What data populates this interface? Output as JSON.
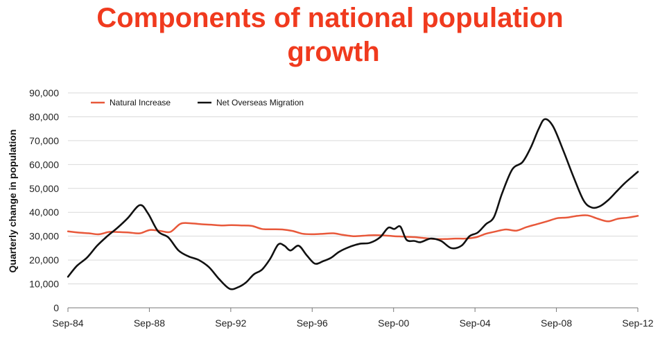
{
  "chart_data": {
    "type": "line",
    "title_line1": "Components of national population",
    "title_line2": "growth",
    "xlabel": "",
    "ylabel": "Quarterly change in population",
    "x_ticks": [
      "Sep-84",
      "Sep-88",
      "Sep-92",
      "Sep-96",
      "Sep-00",
      "Sep-04",
      "Sep-08",
      "Sep-12"
    ],
    "y_ticks": [
      "0",
      "10,000",
      "20,000",
      "30,000",
      "40,000",
      "50,000",
      "60,000",
      "70,000",
      "80,000",
      "90,000"
    ],
    "ylim": [
      0,
      90000
    ],
    "xlim": [
      1984.667,
      2012.667
    ],
    "legend": [
      "Natural Increase",
      "Net Overseas Migration"
    ],
    "legend_position": "top-left",
    "colors": {
      "natural_increase": "#e8583a",
      "net_overseas_migration": "#111111",
      "title": "#f03a1e",
      "grid": "#d9d9d9"
    },
    "series": [
      {
        "name": "Natural Increase",
        "x": [
          1984.67,
          1985.2,
          1985.7,
          1986.2,
          1986.7,
          1987.2,
          1987.7,
          1988.2,
          1988.7,
          1989.2,
          1989.7,
          1990.2,
          1990.7,
          1991.2,
          1991.7,
          1992.2,
          1992.7,
          1993.2,
          1993.7,
          1994.2,
          1994.7,
          1995.2,
          1995.7,
          1996.2,
          1996.7,
          1997.2,
          1997.7,
          1998.2,
          1998.7,
          1999.2,
          1999.7,
          2000.2,
          2000.7,
          2001.2,
          2001.7,
          2002.2,
          2002.7,
          2003.2,
          2003.7,
          2004.2,
          2004.7,
          2005.2,
          2005.7,
          2006.2,
          2006.7,
          2007.2,
          2007.7,
          2008.2,
          2008.7,
          2009.2,
          2009.7,
          2010.2,
          2010.7,
          2011.2,
          2011.7,
          2012.2,
          2012.67
        ],
        "values": [
          32000,
          31500,
          31200,
          30800,
          31800,
          31700,
          31500,
          31200,
          32600,
          32200,
          31800,
          35200,
          35400,
          35000,
          34800,
          34500,
          34600,
          34500,
          34300,
          33000,
          32900,
          32800,
          32200,
          31000,
          30800,
          31000,
          31200,
          30500,
          30000,
          30200,
          30400,
          30300,
          30000,
          29800,
          29600,
          29200,
          28800,
          28800,
          29000,
          29000,
          29500,
          31000,
          32000,
          32800,
          32300,
          33800,
          35000,
          36200,
          37500,
          37800,
          38500,
          38700,
          37300,
          36200,
          37300,
          37800,
          38500
        ]
      },
      {
        "name": "Net Overseas Migration",
        "x": [
          1984.67,
          1985.1,
          1985.6,
          1986.1,
          1986.6,
          1987.1,
          1987.6,
          1988.2,
          1988.6,
          1989.1,
          1989.6,
          1990.1,
          1990.6,
          1991.1,
          1991.6,
          1992.1,
          1992.6,
          1993.0,
          1993.4,
          1993.8,
          1994.2,
          1994.6,
          1995.0,
          1995.3,
          1995.6,
          1996.0,
          1996.4,
          1996.8,
          1997.2,
          1997.6,
          1998.0,
          1998.5,
          1999.0,
          1999.5,
          2000.0,
          2000.4,
          2000.7,
          2001.0,
          2001.3,
          2001.7,
          2002.0,
          2002.5,
          2003.0,
          2003.5,
          2004.0,
          2004.4,
          2004.8,
          2005.2,
          2005.6,
          2006.0,
          2006.5,
          2007.0,
          2007.4,
          2007.8,
          2008.1,
          2008.5,
          2009.0,
          2009.5,
          2010.0,
          2010.4,
          2010.8,
          2011.2,
          2011.6,
          2012.0,
          2012.4,
          2012.67
        ],
        "values": [
          13000,
          17500,
          21000,
          26000,
          30000,
          33500,
          37500,
          43000,
          39500,
          32000,
          29500,
          24000,
          21500,
          20000,
          17000,
          12000,
          8000,
          8500,
          10500,
          14000,
          16000,
          20500,
          26500,
          26000,
          24000,
          26000,
          22000,
          18500,
          19500,
          21000,
          23500,
          25500,
          26800,
          27200,
          29500,
          33500,
          33000,
          34000,
          28500,
          28000,
          27500,
          29000,
          28000,
          25000,
          26000,
          30000,
          31500,
          35000,
          38000,
          48000,
          58000,
          61000,
          67000,
          75000,
          79000,
          76000,
          66000,
          55000,
          45000,
          42000,
          42500,
          45000,
          48500,
          52000,
          55000,
          57000
        ]
      }
    ]
  }
}
